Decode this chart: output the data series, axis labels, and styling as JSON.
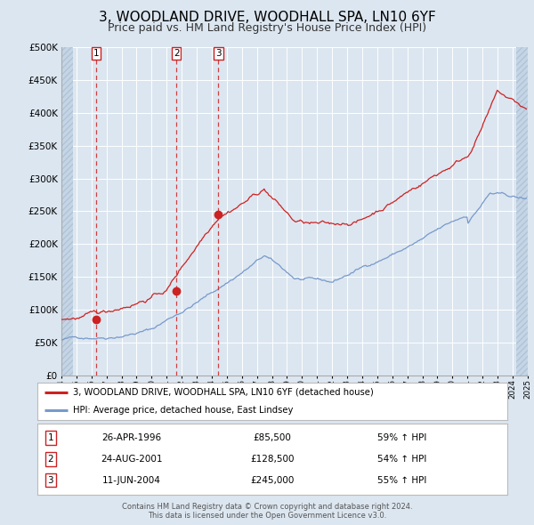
{
  "title": "3, WOODLAND DRIVE, WOODHALL SPA, LN10 6YF",
  "subtitle": "Price paid vs. HM Land Registry's House Price Index (HPI)",
  "title_fontsize": 11,
  "subtitle_fontsize": 9,
  "background_color": "#dce6f0",
  "plot_bg_color": "#dce6f0",
  "grid_color": "#ffffff",
  "ylim": [
    0,
    500000
  ],
  "yticks": [
    0,
    50000,
    100000,
    150000,
    200000,
    250000,
    300000,
    350000,
    400000,
    450000,
    500000
  ],
  "sale_dates": [
    1996.32,
    2001.65,
    2004.44
  ],
  "sale_prices": [
    85500,
    128500,
    245000
  ],
  "sale_labels": [
    "1",
    "2",
    "3"
  ],
  "sale_date_strs": [
    "26-APR-1996",
    "24-AUG-2001",
    "11-JUN-2004"
  ],
  "sale_price_strs": [
    "£85,500",
    "£128,500",
    "£245,000"
  ],
  "sale_hpi_strs": [
    "59% ↑ HPI",
    "54% ↑ HPI",
    "55% ↑ HPI"
  ],
  "hpi_line_color": "#7799cc",
  "price_line_color": "#cc2222",
  "dot_color": "#cc2222",
  "vline_color": "#cc2222",
  "legend_house_label": "3, WOODLAND DRIVE, WOODHALL SPA, LN10 6YF (detached house)",
  "legend_hpi_label": "HPI: Average price, detached house, East Lindsey",
  "footer_text1": "Contains HM Land Registry data © Crown copyright and database right 2024.",
  "footer_text2": "This data is licensed under the Open Government Licence v3.0.",
  "xmin": 1994,
  "xmax": 2025
}
